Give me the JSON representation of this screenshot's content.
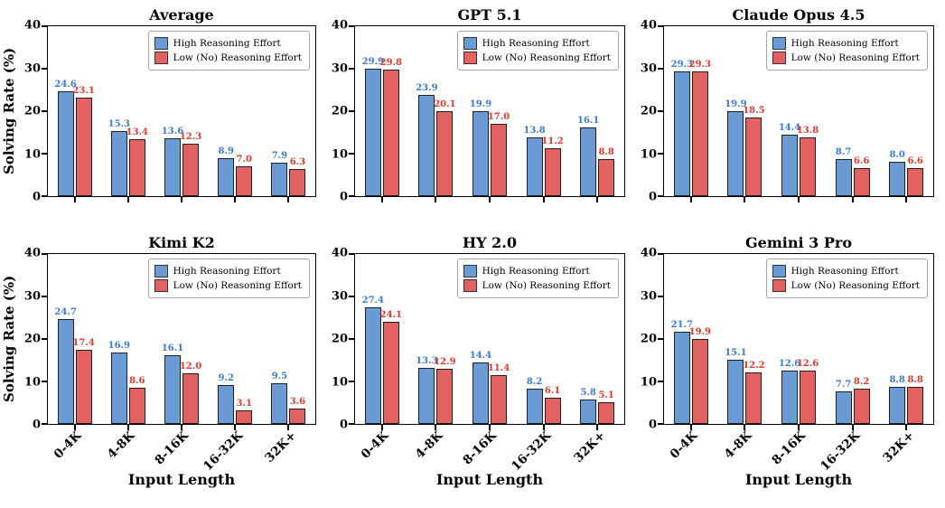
{
  "chart_data": [
    {
      "type": "bar",
      "title": "Average",
      "ylabel": "Solving Rate (%)",
      "xlabel": "Input Length",
      "categories": [
        "0-4K",
        "4-8K",
        "8-16K",
        "16-32K",
        "32K+"
      ],
      "ylim": [
        0,
        40
      ],
      "yticks": [
        0,
        10,
        20,
        30,
        40
      ],
      "grid": false,
      "legend_position": "upper right",
      "series": [
        {
          "name": "High Reasoning Effort",
          "color": "#6b9bd4",
          "label_color": "#3a7bd5",
          "values": [
            24.6,
            15.3,
            13.6,
            8.9,
            7.9
          ]
        },
        {
          "name": "Low (No) Reasoning Effort",
          "color": "#e26161",
          "label_color": "#e5382c",
          "values": [
            23.1,
            13.4,
            12.3,
            7.0,
            6.3
          ]
        }
      ]
    },
    {
      "type": "bar",
      "title": "GPT 5.1",
      "ylabel": "Solving Rate (%)",
      "xlabel": "Input Length",
      "categories": [
        "0-4K",
        "4-8K",
        "8-16K",
        "16-32K",
        "32K+"
      ],
      "ylim": [
        0,
        40
      ],
      "yticks": [
        0,
        10,
        20,
        30,
        40
      ],
      "grid": false,
      "legend_position": "upper right",
      "series": [
        {
          "name": "High Reasoning Effort",
          "color": "#6b9bd4",
          "label_color": "#3a7bd5",
          "values": [
            29.9,
            23.9,
            19.9,
            13.8,
            16.1
          ]
        },
        {
          "name": "Low (No) Reasoning Effort",
          "color": "#e26161",
          "label_color": "#e5382c",
          "values": [
            29.8,
            20.1,
            17.0,
            11.2,
            8.8
          ]
        }
      ]
    },
    {
      "type": "bar",
      "title": "Claude Opus 4.5",
      "ylabel": "Solving Rate (%)",
      "xlabel": "Input Length",
      "categories": [
        "0-4K",
        "4-8K",
        "8-16K",
        "16-32K",
        "32K+"
      ],
      "ylim": [
        0,
        40
      ],
      "yticks": [
        0,
        10,
        20,
        30,
        40
      ],
      "grid": false,
      "legend_position": "upper right",
      "series": [
        {
          "name": "High Reasoning Effort",
          "color": "#6b9bd4",
          "label_color": "#3a7bd5",
          "values": [
            29.3,
            19.9,
            14.4,
            8.7,
            8.0
          ]
        },
        {
          "name": "Low (No) Reasoning Effort",
          "color": "#e26161",
          "label_color": "#e5382c",
          "values": [
            29.3,
            18.5,
            13.8,
            6.6,
            6.6
          ]
        }
      ]
    },
    {
      "type": "bar",
      "title": "Kimi K2",
      "ylabel": "Solving Rate (%)",
      "xlabel": "Input Length",
      "categories": [
        "0-4K",
        "4-8K",
        "8-16K",
        "16-32K",
        "32K+"
      ],
      "ylim": [
        0,
        40
      ],
      "yticks": [
        0,
        10,
        20,
        30,
        40
      ],
      "grid": false,
      "legend_position": "upper right",
      "series": [
        {
          "name": "High Reasoning Effort",
          "color": "#6b9bd4",
          "label_color": "#3a7bd5",
          "values": [
            24.7,
            16.9,
            16.1,
            9.2,
            9.5
          ]
        },
        {
          "name": "Low (No) Reasoning Effort",
          "color": "#e26161",
          "label_color": "#e5382c",
          "values": [
            17.4,
            8.6,
            12.0,
            3.1,
            3.6
          ]
        }
      ]
    },
    {
      "type": "bar",
      "title": "HY 2.0",
      "ylabel": "Solving Rate (%)",
      "xlabel": "Input Length",
      "categories": [
        "0-4K",
        "4-8K",
        "8-16K",
        "16-32K",
        "32K+"
      ],
      "ylim": [
        0,
        40
      ],
      "yticks": [
        0,
        10,
        20,
        30,
        40
      ],
      "grid": false,
      "legend_position": "upper right",
      "series": [
        {
          "name": "High Reasoning Effort",
          "color": "#6b9bd4",
          "label_color": "#3a7bd5",
          "values": [
            27.4,
            13.3,
            14.4,
            8.2,
            5.8
          ]
        },
        {
          "name": "Low (No) Reasoning Effort",
          "color": "#e26161",
          "label_color": "#e5382c",
          "values": [
            24.1,
            12.9,
            11.4,
            6.1,
            5.1
          ]
        }
      ]
    },
    {
      "type": "bar",
      "title": "Gemini 3 Pro",
      "ylabel": "Solving Rate (%)",
      "xlabel": "Input Length",
      "categories": [
        "0-4K",
        "4-8K",
        "8-16K",
        "16-32K",
        "32K+"
      ],
      "ylim": [
        0,
        40
      ],
      "yticks": [
        0,
        10,
        20,
        30,
        40
      ],
      "grid": false,
      "legend_position": "upper right",
      "series": [
        {
          "name": "High Reasoning Effort",
          "color": "#6b9bd4",
          "label_color": "#3a7bd5",
          "values": [
            21.7,
            15.1,
            12.6,
            7.7,
            8.8
          ]
        },
        {
          "name": "Low (No) Reasoning Effort",
          "color": "#e26161",
          "label_color": "#e5382c",
          "values": [
            19.9,
            12.2,
            12.6,
            8.2,
            8.8
          ]
        }
      ]
    }
  ]
}
